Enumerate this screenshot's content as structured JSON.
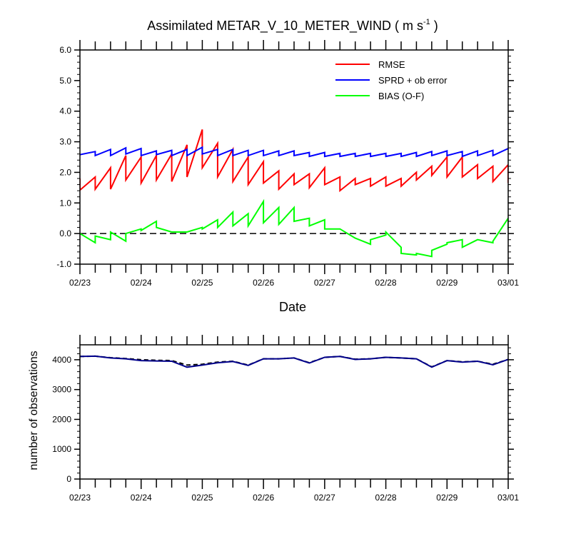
{
  "chart_data": [
    {
      "type": "line",
      "title": "Assimilated METAR_V_10_METER_WIND ( m s",
      "title_units_exponent": "-1",
      "title_close": " )",
      "xlabel": "Date",
      "ylabel": "",
      "x_ticks": [
        "02/23",
        "02/24",
        "02/25",
        "02/26",
        "02/27",
        "02/28",
        "02/29",
        "03/01"
      ],
      "y_ticks": [
        "-1.0",
        "0.0",
        "1.0",
        "2.0",
        "3.0",
        "4.0",
        "5.0",
        "6.0"
      ],
      "xlim": [
        0,
        7
      ],
      "ylim": [
        -1,
        6
      ],
      "zero_line": "dashed",
      "legend_position": "top-right",
      "series": [
        {
          "name": "RMSE",
          "color": "#ff0000",
          "points": [
            [
              0.0,
              1.8
            ],
            [
              0.0,
              1.42
            ],
            [
              0.25,
              1.85
            ],
            [
              0.25,
              1.45
            ],
            [
              0.5,
              2.15
            ],
            [
              0.5,
              1.45
            ],
            [
              0.75,
              2.55
            ],
            [
              0.75,
              1.75
            ],
            [
              1.0,
              2.5
            ],
            [
              1.0,
              1.65
            ],
            [
              1.25,
              2.55
            ],
            [
              1.25,
              1.75
            ],
            [
              1.5,
              2.6
            ],
            [
              1.5,
              1.7
            ],
            [
              1.75,
              2.9
            ],
            [
              1.75,
              1.85
            ],
            [
              2.0,
              3.4
            ],
            [
              2.0,
              2.15
            ],
            [
              2.25,
              2.95
            ],
            [
              2.25,
              1.85
            ],
            [
              2.5,
              2.75
            ],
            [
              2.5,
              1.7
            ],
            [
              2.75,
              2.5
            ],
            [
              2.75,
              1.6
            ],
            [
              3.0,
              2.35
            ],
            [
              3.0,
              1.65
            ],
            [
              3.25,
              2.05
            ],
            [
              3.25,
              1.45
            ],
            [
              3.5,
              1.95
            ],
            [
              3.5,
              1.6
            ],
            [
              3.75,
              1.95
            ],
            [
              3.75,
              1.5
            ],
            [
              4.0,
              2.15
            ],
            [
              4.0,
              1.6
            ],
            [
              4.25,
              1.85
            ],
            [
              4.25,
              1.4
            ],
            [
              4.5,
              1.8
            ],
            [
              4.5,
              1.6
            ],
            [
              4.75,
              1.8
            ],
            [
              4.75,
              1.55
            ],
            [
              5.0,
              1.85
            ],
            [
              5.0,
              1.55
            ],
            [
              5.25,
              1.8
            ],
            [
              5.25,
              1.55
            ],
            [
              5.5,
              2.0
            ],
            [
              5.5,
              1.75
            ],
            [
              5.75,
              2.2
            ],
            [
              5.75,
              1.9
            ],
            [
              6.0,
              2.5
            ],
            [
              6.0,
              1.85
            ],
            [
              6.25,
              2.5
            ],
            [
              6.25,
              1.85
            ],
            [
              6.5,
              2.25
            ],
            [
              6.5,
              1.8
            ],
            [
              6.75,
              2.2
            ],
            [
              6.75,
              1.7
            ],
            [
              7.0,
              2.25
            ],
            [
              7.0,
              1.7
            ],
            [
              7.25,
              2.1
            ],
            [
              7.25,
              1.45
            ]
          ]
        },
        {
          "name": "SPRD + ob error",
          "color": "#0000ff",
          "points": [
            [
              0.0,
              2.58
            ],
            [
              0.25,
              2.68
            ],
            [
              0.25,
              2.55
            ],
            [
              0.5,
              2.75
            ],
            [
              0.5,
              2.55
            ],
            [
              0.75,
              2.8
            ],
            [
              0.75,
              2.6
            ],
            [
              1.0,
              2.78
            ],
            [
              1.0,
              2.55
            ],
            [
              1.25,
              2.7
            ],
            [
              1.25,
              2.58
            ],
            [
              1.5,
              2.72
            ],
            [
              1.5,
              2.55
            ],
            [
              1.75,
              2.75
            ],
            [
              1.75,
              2.55
            ],
            [
              2.0,
              2.82
            ],
            [
              2.0,
              2.6
            ],
            [
              2.25,
              2.75
            ],
            [
              2.25,
              2.55
            ],
            [
              2.5,
              2.75
            ],
            [
              2.5,
              2.55
            ],
            [
              2.75,
              2.72
            ],
            [
              2.75,
              2.55
            ],
            [
              3.0,
              2.72
            ],
            [
              3.0,
              2.55
            ],
            [
              3.25,
              2.7
            ],
            [
              3.25,
              2.55
            ],
            [
              3.5,
              2.7
            ],
            [
              3.5,
              2.55
            ],
            [
              3.75,
              2.65
            ],
            [
              3.75,
              2.52
            ],
            [
              4.0,
              2.65
            ],
            [
              4.0,
              2.52
            ],
            [
              4.25,
              2.62
            ],
            [
              4.25,
              2.52
            ],
            [
              4.5,
              2.62
            ],
            [
              4.5,
              2.52
            ],
            [
              4.75,
              2.62
            ],
            [
              4.75,
              2.52
            ],
            [
              5.0,
              2.62
            ],
            [
              5.0,
              2.52
            ],
            [
              5.25,
              2.62
            ],
            [
              5.25,
              2.52
            ],
            [
              5.5,
              2.65
            ],
            [
              5.5,
              2.52
            ],
            [
              5.75,
              2.68
            ],
            [
              5.75,
              2.55
            ],
            [
              6.0,
              2.7
            ],
            [
              6.0,
              2.55
            ],
            [
              6.25,
              2.68
            ],
            [
              6.25,
              2.52
            ],
            [
              6.5,
              2.7
            ],
            [
              6.5,
              2.55
            ],
            [
              6.75,
              2.72
            ],
            [
              6.75,
              2.55
            ],
            [
              7.0,
              2.78
            ]
          ]
        },
        {
          "name": "BIAS (O-F)",
          "color": "#00ff00",
          "points": [
            [
              0.0,
              0.0
            ],
            [
              0.25,
              -0.3
            ],
            [
              0.25,
              -0.08
            ],
            [
              0.5,
              -0.2
            ],
            [
              0.5,
              0.05
            ],
            [
              0.75,
              -0.25
            ],
            [
              0.75,
              0.0
            ],
            [
              1.0,
              0.15
            ],
            [
              1.0,
              0.1
            ],
            [
              1.25,
              0.4
            ],
            [
              1.25,
              0.2
            ],
            [
              1.5,
              0.05
            ],
            [
              1.75,
              0.05
            ],
            [
              2.0,
              0.2
            ],
            [
              2.0,
              0.15
            ],
            [
              2.25,
              0.45
            ],
            [
              2.25,
              0.2
            ],
            [
              2.5,
              0.7
            ],
            [
              2.5,
              0.25
            ],
            [
              2.75,
              0.65
            ],
            [
              2.75,
              0.25
            ],
            [
              3.0,
              1.05
            ],
            [
              3.0,
              0.35
            ],
            [
              3.25,
              0.85
            ],
            [
              3.25,
              0.3
            ],
            [
              3.5,
              0.85
            ],
            [
              3.5,
              0.4
            ],
            [
              3.75,
              0.5
            ],
            [
              3.75,
              0.25
            ],
            [
              4.0,
              0.45
            ],
            [
              4.0,
              0.15
            ],
            [
              4.25,
              0.15
            ],
            [
              4.5,
              -0.15
            ],
            [
              4.75,
              -0.35
            ],
            [
              4.75,
              -0.2
            ],
            [
              5.0,
              -0.05
            ],
            [
              5.0,
              0.05
            ],
            [
              5.25,
              -0.45
            ],
            [
              5.25,
              -0.65
            ],
            [
              5.5,
              -0.7
            ],
            [
              5.5,
              -0.65
            ],
            [
              5.75,
              -0.75
            ],
            [
              5.75,
              -0.55
            ],
            [
              6.0,
              -0.35
            ],
            [
              6.0,
              -0.3
            ],
            [
              6.25,
              -0.2
            ],
            [
              6.25,
              -0.45
            ],
            [
              6.5,
              -0.2
            ],
            [
              6.5,
              -0.2
            ],
            [
              6.75,
              -0.3
            ],
            [
              6.75,
              -0.25
            ],
            [
              7.0,
              0.5
            ],
            [
              7.0,
              0.15
            ],
            [
              7.25,
              0.1
            ]
          ]
        }
      ]
    },
    {
      "type": "line",
      "title": "",
      "xlabel": "",
      "ylabel": "number of observations",
      "x_ticks": [
        "02/23",
        "02/24",
        "02/25",
        "02/26",
        "02/27",
        "02/28",
        "02/29",
        "03/01"
      ],
      "y_ticks": [
        "0",
        "1000",
        "2000",
        "3000",
        "4000"
      ],
      "xlim": [
        0,
        7
      ],
      "ylim": [
        0,
        4500
      ],
      "series": [
        {
          "name": "",
          "color": "#000000",
          "style": "dashed",
          "points": [
            [
              0.0,
              4110
            ],
            [
              0.25,
              4120
            ],
            [
              0.5,
              4070
            ],
            [
              0.75,
              4040
            ],
            [
              1.0,
              4000
            ],
            [
              1.25,
              3980
            ],
            [
              1.5,
              3970
            ],
            [
              1.75,
              3820
            ],
            [
              2.0,
              3850
            ],
            [
              2.25,
              3920
            ],
            [
              2.5,
              3950
            ],
            [
              2.75,
              3820
            ],
            [
              3.0,
              4030
            ],
            [
              3.25,
              4030
            ],
            [
              3.5,
              4060
            ],
            [
              3.75,
              3900
            ],
            [
              4.0,
              4080
            ],
            [
              4.25,
              4110
            ],
            [
              4.5,
              4020
            ],
            [
              4.75,
              4030
            ],
            [
              5.0,
              4080
            ],
            [
              5.25,
              4060
            ],
            [
              5.5,
              4030
            ],
            [
              5.75,
              3760
            ],
            [
              6.0,
              3970
            ],
            [
              6.25,
              3930
            ],
            [
              6.5,
              3950
            ],
            [
              6.75,
              3850
            ],
            [
              7.0,
              4010
            ]
          ]
        },
        {
          "name": "",
          "color": "#00008b",
          "style": "solid",
          "points": [
            [
              0.0,
              4110
            ],
            [
              0.25,
              4120
            ],
            [
              0.5,
              4060
            ],
            [
              0.75,
              4030
            ],
            [
              1.0,
              3970
            ],
            [
              1.25,
              3960
            ],
            [
              1.5,
              3950
            ],
            [
              1.75,
              3750
            ],
            [
              2.0,
              3820
            ],
            [
              2.25,
              3900
            ],
            [
              2.5,
              3940
            ],
            [
              2.75,
              3810
            ],
            [
              3.0,
              4030
            ],
            [
              3.25,
              4030
            ],
            [
              3.5,
              4060
            ],
            [
              3.75,
              3890
            ],
            [
              4.0,
              4080
            ],
            [
              4.25,
              4110
            ],
            [
              4.5,
              4010
            ],
            [
              4.75,
              4030
            ],
            [
              5.0,
              4080
            ],
            [
              5.25,
              4060
            ],
            [
              5.5,
              4030
            ],
            [
              5.75,
              3750
            ],
            [
              6.0,
              3970
            ],
            [
              6.25,
              3920
            ],
            [
              6.5,
              3950
            ],
            [
              6.75,
              3830
            ],
            [
              7.0,
              4010
            ]
          ]
        }
      ]
    }
  ]
}
